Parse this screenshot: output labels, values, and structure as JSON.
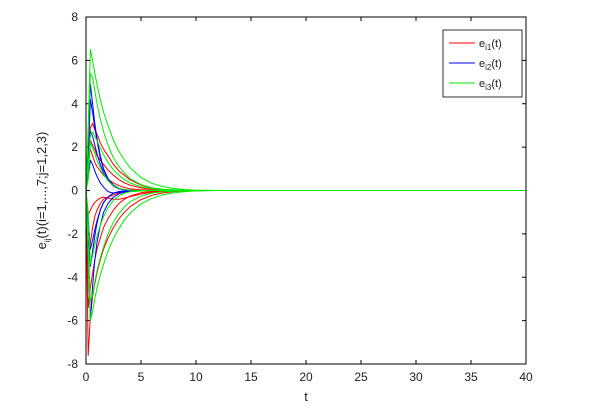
{
  "chart_data": {
    "type": "line",
    "xlabel": "t",
    "ylabel": {
      "base": "e",
      "sub": "ij",
      "rest": "(t)(i=1,...,7;j=1,2,3)"
    },
    "xlim": [
      0,
      40
    ],
    "ylim": [
      -8,
      8
    ],
    "x_ticks": [
      0,
      5,
      10,
      15,
      20,
      25,
      30,
      35,
      40
    ],
    "y_ticks": [
      -8,
      -6,
      -4,
      -2,
      0,
      2,
      4,
      6,
      8
    ],
    "grid": false,
    "legend_position": "top-right",
    "x": [
      0,
      0.2,
      0.4,
      0.6,
      0.8,
      1,
      1.3,
      1.6,
      2,
      2.5,
      3,
      3.5,
      4,
      5,
      6,
      7,
      8,
      9,
      10,
      11,
      12,
      40
    ],
    "series": [
      {
        "group": "e_i1",
        "legend": {
          "base": "e",
          "sub": "i1",
          "rest": "(t)"
        },
        "color": "#ff0000",
        "curves": [
          [
            0,
            -7.6,
            -5.8,
            -4.9,
            -4.3,
            -3.8,
            -3.2,
            -2.7,
            -2.2,
            -1.7,
            -1.3,
            -1.0,
            -0.75,
            -0.42,
            -0.22,
            -0.11,
            -0.05,
            -0.02,
            -0.01,
            0,
            0,
            0
          ],
          [
            0,
            -5.4,
            -4.5,
            -3.8,
            -3.2,
            -2.7,
            -2.2,
            -1.7,
            -1.3,
            -0.9,
            -0.6,
            -0.4,
            -0.26,
            -0.1,
            -0.04,
            -0.01,
            0,
            0,
            0,
            0,
            0,
            0
          ],
          [
            0,
            -3.5,
            -2.4,
            -1.7,
            -1.2,
            -0.9,
            -0.6,
            -0.4,
            -0.3,
            -0.2,
            -0.12,
            -0.08,
            -0.05,
            -0.02,
            0,
            0,
            0,
            0,
            0,
            0,
            0,
            0
          ],
          [
            0,
            1.0,
            2.9,
            3.1,
            2.8,
            2.6,
            2.2,
            1.9,
            1.6,
            1.2,
            0.9,
            0.7,
            0.5,
            0.25,
            0.12,
            0.05,
            0.02,
            0.01,
            0,
            0,
            0,
            0
          ],
          [
            0,
            1.6,
            2.3,
            2.1,
            1.9,
            1.6,
            1.4,
            1.2,
            0.95,
            0.7,
            0.5,
            0.35,
            0.25,
            0.12,
            0.05,
            0.02,
            0.01,
            0,
            0,
            0,
            0,
            0
          ],
          [
            0,
            1.6,
            1.9,
            1.6,
            1.3,
            1.1,
            0.9,
            0.7,
            0.5,
            0.35,
            0.22,
            0.14,
            0.08,
            0.03,
            0.01,
            0,
            0,
            0,
            0,
            0,
            0,
            0
          ],
          [
            0,
            -1.1,
            -0.9,
            -0.7,
            -0.55,
            -0.45,
            -0.35,
            -0.3,
            -0.35,
            -0.4,
            -0.4,
            -0.35,
            -0.28,
            -0.16,
            -0.08,
            -0.03,
            -0.01,
            0,
            0,
            0,
            0,
            0
          ]
        ]
      },
      {
        "group": "e_i2",
        "legend": {
          "base": "e",
          "sub": "i2",
          "rest": "(t)"
        },
        "color": "#0000ff",
        "curves": [
          [
            0,
            -3.2,
            -6.0,
            -4.4,
            -3.2,
            -2.4,
            -1.6,
            -1.0,
            -0.6,
            -0.3,
            -0.15,
            -0.07,
            -0.03,
            0,
            0,
            0,
            0,
            0,
            0,
            0,
            0,
            0
          ],
          [
            0,
            -2.2,
            -3.5,
            -2.8,
            -2.1,
            -1.5,
            -0.9,
            -0.55,
            -0.3,
            -0.12,
            -0.05,
            -0.02,
            0,
            0,
            0,
            0,
            0,
            0,
            0,
            0,
            0,
            0
          ],
          [
            0,
            2.2,
            4.9,
            4.0,
            3.1,
            2.4,
            1.6,
            1.0,
            0.55,
            0.25,
            0.1,
            0.04,
            0.01,
            0,
            0,
            0,
            0,
            0,
            0,
            0,
            0,
            0
          ],
          [
            0,
            1.6,
            4.2,
            3.6,
            2.9,
            2.3,
            1.5,
            0.95,
            0.5,
            0.2,
            0.08,
            0.03,
            0.01,
            0,
            0,
            0,
            0,
            0,
            0,
            0,
            0,
            0
          ],
          [
            0,
            1.0,
            2.7,
            2.5,
            2.1,
            1.7,
            1.2,
            0.8,
            0.45,
            0.2,
            0.08,
            0.03,
            0,
            0,
            0,
            0,
            0,
            0,
            0,
            0,
            0,
            0
          ],
          [
            0,
            -1.3,
            -2.7,
            -2.3,
            -1.8,
            -1.4,
            -0.9,
            -0.55,
            -0.3,
            -0.12,
            -0.05,
            -0.02,
            0,
            0,
            0,
            0,
            0,
            0,
            0,
            0,
            0,
            0
          ],
          [
            0,
            0.6,
            1.4,
            1.2,
            0.9,
            0.65,
            0.35,
            0.15,
            -0.05,
            -0.12,
            -0.08,
            -0.04,
            -0.02,
            0,
            0,
            0,
            0,
            0,
            0,
            0,
            0,
            0
          ]
        ]
      },
      {
        "group": "e_i3",
        "legend": {
          "base": "e",
          "sub": "i3",
          "rest": "(t)"
        },
        "color": "#00ee00",
        "curves": [
          [
            0,
            3.0,
            6.5,
            6.0,
            5.4,
            4.9,
            4.2,
            3.6,
            3.0,
            2.3,
            1.8,
            1.4,
            1.05,
            0.6,
            0.33,
            0.18,
            0.09,
            0.04,
            0.02,
            0.01,
            0,
            0
          ],
          [
            0,
            2.5,
            5.4,
            5.2,
            4.6,
            4.0,
            3.3,
            2.7,
            2.1,
            1.5,
            1.1,
            0.8,
            0.55,
            0.27,
            0.13,
            0.06,
            0.03,
            0.01,
            0,
            0,
            0,
            0
          ],
          [
            0,
            -3.0,
            -6.0,
            -5.6,
            -5.0,
            -4.5,
            -3.9,
            -3.4,
            -2.8,
            -2.2,
            -1.75,
            -1.35,
            -1.05,
            -0.62,
            -0.36,
            -0.2,
            -0.1,
            -0.05,
            -0.02,
            -0.01,
            0,
            0
          ],
          [
            0,
            -2.5,
            -5.1,
            -4.8,
            -4.2,
            -3.7,
            -3.1,
            -2.6,
            -2.0,
            -1.45,
            -1.05,
            -0.75,
            -0.52,
            -0.26,
            -0.12,
            -0.06,
            -0.03,
            -0.01,
            0,
            0,
            0,
            0
          ],
          [
            0,
            1.2,
            2.6,
            2.7,
            2.5,
            2.3,
            1.95,
            1.65,
            1.3,
            0.95,
            0.7,
            0.5,
            0.35,
            0.17,
            0.08,
            0.04,
            0.02,
            0.01,
            0,
            0,
            0,
            0
          ],
          [
            0,
            -1.0,
            -3.4,
            -3.0,
            -2.5,
            -2.1,
            -1.6,
            -1.2,
            -0.8,
            -0.45,
            -0.24,
            -0.12,
            -0.06,
            -0.02,
            0,
            0,
            0,
            0,
            0,
            0,
            0,
            0
          ],
          [
            0,
            0.5,
            2.2,
            2.0,
            1.7,
            1.4,
            1.05,
            0.75,
            0.45,
            0.22,
            0.1,
            0.04,
            0.02,
            0,
            0,
            0,
            0,
            0,
            0,
            0,
            0,
            0
          ]
        ]
      }
    ]
  }
}
